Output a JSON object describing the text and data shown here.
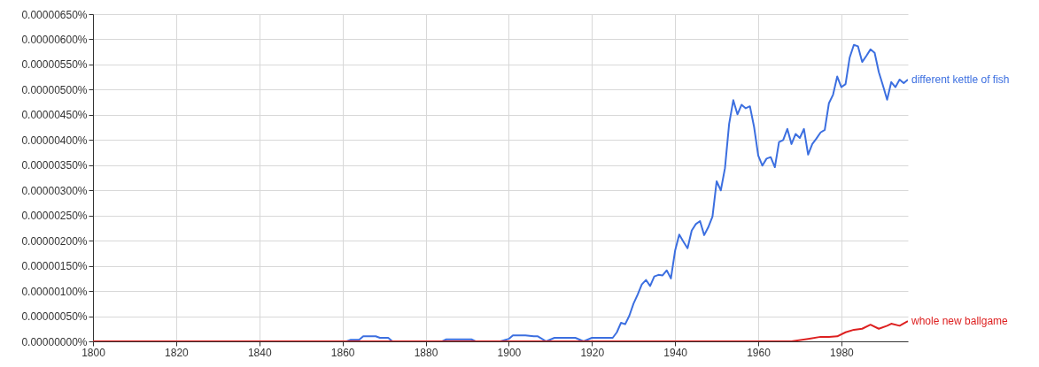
{
  "chart_data": {
    "type": "line",
    "legend": false,
    "grid": true,
    "line_style": "solid",
    "marker": "none",
    "xlim": [
      1800,
      1996
    ],
    "xticks": [
      1800,
      1820,
      1840,
      1860,
      1880,
      1900,
      1920,
      1940,
      1960,
      1980
    ],
    "ylim": [
      0,
      6.5e-06
    ],
    "yticks": [
      {
        "value": 0,
        "label": "0.00000000%"
      },
      {
        "value": 5e-07,
        "label": "0.00000050%"
      },
      {
        "value": 1e-06,
        "label": "0.00000100%"
      },
      {
        "value": 1.5e-06,
        "label": "0.00000150%"
      },
      {
        "value": 2e-06,
        "label": "0.00000200%"
      },
      {
        "value": 2.5e-06,
        "label": "0.00000250%"
      },
      {
        "value": 3e-06,
        "label": "0.00000300%"
      },
      {
        "value": 3.5e-06,
        "label": "0.00000350%"
      },
      {
        "value": 4e-06,
        "label": "0.00000400%"
      },
      {
        "value": 4.5e-06,
        "label": "0.00000450%"
      },
      {
        "value": 5e-06,
        "label": "0.00000500%"
      },
      {
        "value": 5.5e-06,
        "label": "0.00000550%"
      },
      {
        "value": 6e-06,
        "label": "0.00000600%"
      },
      {
        "value": 6.5e-06,
        "label": "0.00000650%"
      }
    ],
    "series": [
      {
        "name": "different kettle of fish",
        "color": "#3c6fe0",
        "x": [
          1800,
          1861,
          1862,
          1864,
          1865,
          1868,
          1869,
          1871,
          1872,
          1884,
          1885,
          1891,
          1892,
          1898,
          1900,
          1901,
          1904,
          1906,
          1907,
          1909,
          1911,
          1916,
          1918,
          1920,
          1924,
          1925,
          1926,
          1927,
          1928,
          1929,
          1930,
          1931,
          1932,
          1933,
          1934,
          1935,
          1936,
          1937,
          1938,
          1939,
          1940,
          1941,
          1942,
          1943,
          1944,
          1945,
          1946,
          1947,
          1948,
          1949,
          1950,
          1951,
          1952,
          1953,
          1954,
          1955,
          1956,
          1957,
          1958,
          1959,
          1960,
          1961,
          1962,
          1963,
          1964,
          1965,
          1966,
          1967,
          1968,
          1969,
          1970,
          1971,
          1972,
          1973,
          1974,
          1975,
          1976,
          1977,
          1978,
          1979,
          1980,
          1981,
          1982,
          1983,
          1984,
          1985,
          1986,
          1987,
          1988,
          1989,
          1990,
          1991,
          1992,
          1993,
          1994,
          1995,
          1996
        ],
        "values": [
          0,
          0,
          3e-08,
          3e-08,
          1e-07,
          1e-07,
          7e-08,
          7e-08,
          0,
          0,
          4e-08,
          4e-08,
          0,
          0,
          5e-08,
          1.2e-07,
          1.2e-07,
          1e-07,
          1e-07,
          0,
          7e-08,
          7e-08,
          0,
          7e-08,
          7e-08,
          7e-08,
          1.8e-07,
          3.7e-07,
          3.4e-07,
          5.1e-07,
          7.5e-07,
          9.3e-07,
          1.13e-06,
          1.22e-06,
          1.1e-06,
          1.29e-06,
          1.32e-06,
          1.31e-06,
          1.41e-06,
          1.25e-06,
          1.8e-06,
          2.12e-06,
          1.98e-06,
          1.85e-06,
          2.2e-06,
          2.33e-06,
          2.39e-06,
          2.11e-06,
          2.27e-06,
          2.48e-06,
          3.18e-06,
          3e-06,
          3.44e-06,
          4.32e-06,
          4.79e-06,
          4.51e-06,
          4.7e-06,
          4.63e-06,
          4.67e-06,
          4.26e-06,
          3.69e-06,
          3.49e-06,
          3.63e-06,
          3.66e-06,
          3.46e-06,
          3.96e-06,
          4e-06,
          4.22e-06,
          3.92e-06,
          4.12e-06,
          4.04e-06,
          4.22e-06,
          3.71e-06,
          3.92e-06,
          4.03e-06,
          4.15e-06,
          4.2e-06,
          4.73e-06,
          4.9e-06,
          5.26e-06,
          5.05e-06,
          5.11e-06,
          5.64e-06,
          5.89e-06,
          5.86e-06,
          5.55e-06,
          5.67e-06,
          5.8e-06,
          5.73e-06,
          5.35e-06,
          5.08e-06,
          4.8e-06,
          5.15e-06,
          5.05e-06,
          5.2e-06,
          5.13e-06,
          5.2e-06
        ]
      },
      {
        "name": "whole new ballgame",
        "color": "#dd2020",
        "x": [
          1800,
          1968,
          1972,
          1975,
          1977,
          1979,
          1981,
          1983,
          1985,
          1987,
          1989,
          1991,
          1992,
          1994,
          1996
        ],
        "values": [
          0,
          0,
          5e-08,
          9e-08,
          9e-08,
          1e-07,
          1.8e-07,
          2.3e-07,
          2.5e-07,
          3.3e-07,
          2.5e-07,
          3.1e-07,
          3.5e-07,
          3.1e-07,
          4e-07
        ]
      }
    ]
  }
}
